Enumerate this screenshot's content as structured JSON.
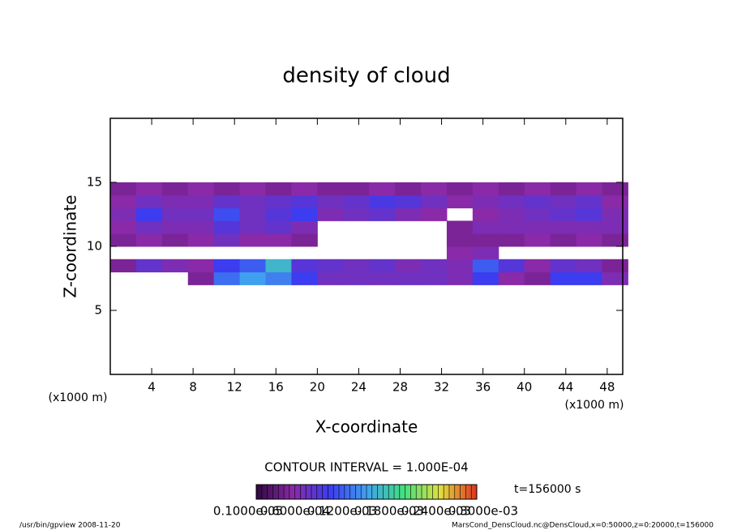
{
  "chart_data": {
    "type": "heatmap",
    "title": "density of cloud",
    "x_label": "X-coordinate",
    "y_label": "Z-coordinate",
    "x_unit_left": "(x1000 m)",
    "x_unit_right": "(x1000 m)",
    "contour_interval": "CONTOUR INTERVAL = 1.000E-04",
    "time_label": "t=156000 s",
    "footer_left": "/usr/bin/gpview  2008-11-20",
    "footer_right": "MarsCond_DensCloud.nc@DensCloud,x=0:50000,z=0:20000,t=156000",
    "xlim": [
      0,
      49.5
    ],
    "ylim": [
      0,
      20
    ],
    "xticks": [
      4,
      8,
      12,
      16,
      20,
      24,
      28,
      32,
      36,
      40,
      44,
      48
    ],
    "yticks": [
      5,
      10,
      15
    ],
    "x": [
      1.25,
      3.75,
      6.25,
      8.75,
      11.25,
      13.75,
      16.25,
      18.75,
      21.25,
      23.75,
      26.25,
      28.75,
      31.25,
      33.75,
      36.25,
      38.75,
      41.25,
      43.75,
      46.25,
      48.75
    ],
    "y": [
      7.5,
      8.5,
      9.5,
      10.5,
      11.5,
      12.5,
      13.5,
      14.5
    ],
    "z": [
      [
        null,
        null,
        null,
        5e-05,
        0.00015,
        0.00018,
        0.00016,
        0.00012,
        8e-05,
        8e-05,
        8e-05,
        8e-05,
        8e-05,
        7e-05,
        0.00012,
        6e-05,
        5e-05,
        0.00012,
        0.00012,
        7e-05
      ],
      [
        5e-05,
        9e-05,
        7e-05,
        6e-05,
        0.00012,
        0.00014,
        0.0002,
        0.0001,
        9e-05,
        8e-05,
        9e-05,
        7e-05,
        8e-05,
        7e-05,
        0.00014,
        0.0001,
        6e-05,
        9e-05,
        8e-05,
        5e-05
      ],
      [
        null,
        null,
        null,
        null,
        null,
        null,
        null,
        null,
        null,
        null,
        null,
        null,
        null,
        6e-05,
        7e-05,
        null,
        null,
        null,
        null,
        null
      ],
      [
        5e-05,
        6e-05,
        5e-05,
        6e-05,
        8e-05,
        6e-05,
        6e-05,
        5e-05,
        null,
        null,
        null,
        null,
        null,
        5e-05,
        5e-05,
        5e-05,
        6e-05,
        5e-05,
        6e-05,
        5e-05
      ],
      [
        6e-05,
        8e-05,
        7e-05,
        7e-05,
        0.0001,
        8e-05,
        9e-05,
        7e-05,
        null,
        null,
        null,
        null,
        null,
        5e-05,
        7e-05,
        7e-05,
        7e-05,
        7e-05,
        7e-05,
        7e-05
      ],
      [
        7e-05,
        0.00012,
        8e-05,
        8e-05,
        0.00013,
        8e-05,
        0.0001,
        0.00012,
        7e-05,
        8e-05,
        9e-05,
        7e-05,
        6e-05,
        null,
        6e-05,
        7e-05,
        8e-05,
        9e-05,
        0.0001,
        7e-05
      ],
      [
        6e-05,
        8e-05,
        7e-05,
        7e-05,
        9e-05,
        8e-05,
        9e-05,
        0.0001,
        8e-05,
        9e-05,
        0.00011,
        0.0001,
        8e-05,
        6e-05,
        7e-05,
        8e-05,
        9e-05,
        8e-05,
        9e-05,
        6e-05
      ],
      [
        5e-05,
        6e-05,
        5e-05,
        6e-05,
        5e-05,
        6e-05,
        5e-05,
        6e-05,
        5e-05,
        5e-05,
        6e-05,
        5e-05,
        6e-05,
        5e-05,
        6e-05,
        5e-05,
        6e-05,
        5e-05,
        6e-05,
        5e-05
      ]
    ],
    "clim": [
      0,
      0.00036
    ],
    "colormap": [
      "#300840",
      "#8a2aa8",
      "#3c3cf0",
      "#40a0f0",
      "#40e080",
      "#e0e040",
      "#e03020"
    ],
    "colorbar_ticks": [
      {
        "value": 1e-06,
        "label": "0.1000e-05"
      },
      {
        "value": 6e-05,
        "label": "0.6000e-04"
      },
      {
        "value": 0.00012,
        "label": "0.1200e-03"
      },
      {
        "value": 0.00018,
        "label": "0.1800e-03"
      },
      {
        "value": 0.00024,
        "label": "0.2400e-03"
      },
      {
        "value": 0.0003,
        "label": "0.3000e-03"
      }
    ]
  }
}
